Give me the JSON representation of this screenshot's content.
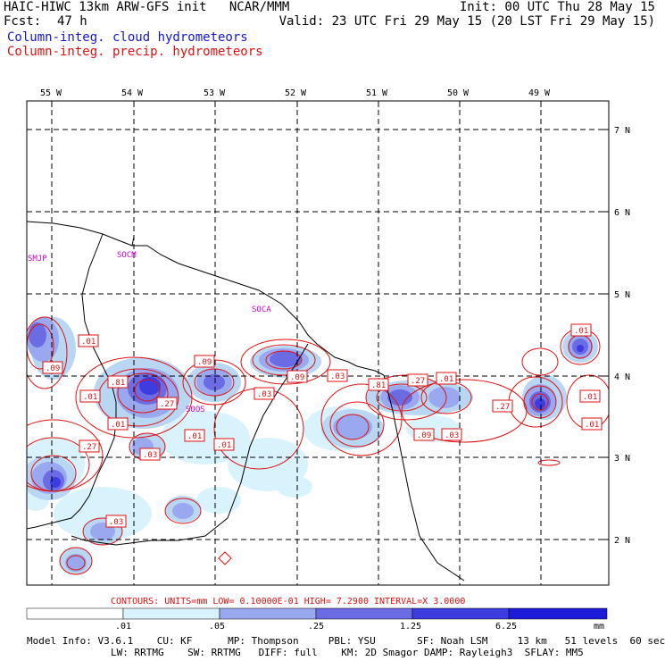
{
  "header": {
    "model_line": "HAIC-HIWC 13km ARW-GFS init   NCAR/MMM",
    "fcst_label": "Fcst:",
    "fcst_value": "47 h",
    "init_line": "Init: 00 UTC Thu 28 May 15",
    "valid_line": "Valid: 23 UTC Fri 29 May 15 (20 LST Fri 29 May 15)",
    "field_cloud": "Column-integ. cloud hydrometeors",
    "field_precip": "Column-integ. precip. hydrometeors"
  },
  "colors": {
    "cloud_text": "#1515d0",
    "precip_text": "#e01010",
    "contour": "#e01010",
    "place_label": "#cc00cc",
    "shade": [
      "#d8f3fb",
      "#b9d7f3",
      "#9aa9ef",
      "#6b6be4",
      "#3c3ce0",
      "#1b1bd8"
    ]
  },
  "map": {
    "lon_labels": [
      "55 W",
      "54 W",
      "53 W",
      "52 W",
      "51 W",
      "50 W",
      "49 W"
    ],
    "lat_labels": [
      "7 N",
      "6 N",
      "5 N",
      "4 N",
      "3 N",
      "2 N"
    ],
    "place_labels": [
      "SMJP",
      "SOCM",
      "SOCA",
      "SOOS"
    ],
    "contour_labels": [
      ".01",
      ".09",
      ".81",
      ".01",
      ".27",
      ".01",
      ".27",
      ".03",
      ".01",
      ".01",
      ".09",
      ".03",
      ".09",
      ".03",
      ".81",
      ".27",
      ".01",
      ".09",
      ".03",
      ".27",
      ".01",
      ".01",
      ".01",
      ".03"
    ]
  },
  "footer": {
    "contour_info": "CONTOURS:  UNITS=mm  LOW= 0.10000E-01  HIGH=  7.2900     INTERVAL=X  3.0000",
    "scale_labels": [
      ".01",
      ".05",
      ".25",
      "1.25",
      "6.25"
    ],
    "scale_unit": "mm",
    "model_info_1": "Model Info: V3.6.1    CU: KF      MP: Thompson     PBL: YSU       SF: Noah LSM     13 km   51 levels  60 sec",
    "model_info_2": "LW: RRTMG    SW: RRTMG   DIFF: full    KM: 2D Smagor DAMP: Rayleigh3  SFLAY: MM5"
  }
}
